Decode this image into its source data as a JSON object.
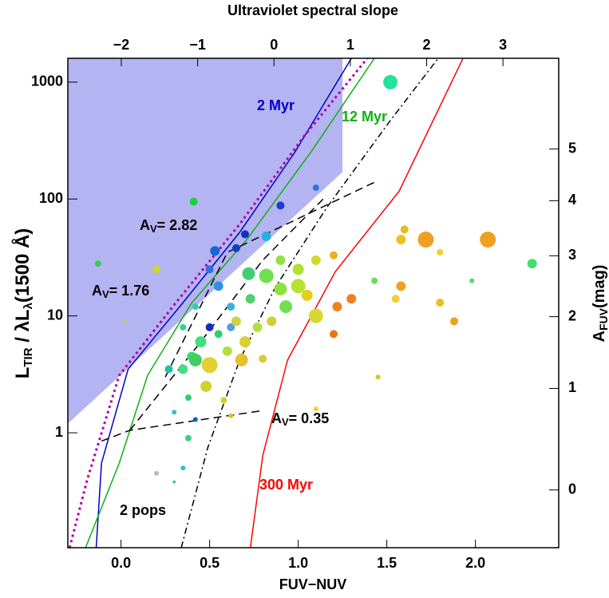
{
  "chart_data": {
    "type": "scatter",
    "xlabel": "FUV−NUV",
    "x2label": "Ultraviolet spectral slope",
    "ylabel": {
      "text": "L",
      "sub": "TIR",
      "tail": " / λL",
      "sub2": "λ",
      "tail2": "(1500 Å)"
    },
    "y2label": {
      "text": "A",
      "sub": "FUV",
      "tail": "(mag)"
    },
    "xlim": [
      -0.3,
      2.47
    ],
    "xticks": [
      {
        "value": 0,
        "label": "0.0"
      },
      0.5,
      {
        "value": 1,
        "label": "1.0"
      },
      1.5,
      {
        "value": 2,
        "label": "2.0"
      }
    ],
    "x2lim": [
      -2.7,
      3.73
    ],
    "x2ticks": [
      {
        "value": -2,
        "label": "−2"
      },
      {
        "value": -1,
        "label": "−1"
      },
      0,
      1,
      2,
      3
    ],
    "ylim": [
      0.104,
      1600
    ],
    "yscale": "log",
    "yticks": [
      1,
      10,
      100,
      1000
    ],
    "y2ticks": [
      0,
      1,
      2,
      3,
      4,
      5
    ],
    "y2_poly_of_log_y": [
      0.4967,
      1.196,
      0.3522,
      -0.0333
    ],
    "shaded_region": {
      "color": "#b4b4f2",
      "x": [
        -0.3,
        1.25,
        1.25,
        -0.3
      ],
      "y": [
        1.2,
        170,
        1600,
        1600
      ]
    },
    "curves": [
      {
        "label": "2 Myr",
        "color": "#0000c8",
        "dash": "solid",
        "x": [
          -0.14,
          -0.11,
          0.04,
          0.35,
          0.67,
          0.98,
          1.3
        ],
        "y": [
          0.104,
          0.55,
          3.5,
          13,
          52,
          250,
          1600
        ]
      },
      {
        "color": "#b000b0",
        "dash": "dotted",
        "x": [
          -0.29,
          -0.19,
          -0.01,
          0.31,
          0.67,
          1.03,
          1.39
        ],
        "y": [
          0.104,
          0.4,
          3.1,
          13,
          61,
          340,
          1600
        ]
      },
      {
        "label": "12 Myr",
        "color": "#10b010",
        "dash": "solid",
        "x": [
          -0.2,
          -0.01,
          0.15,
          0.4,
          0.71,
          1.07,
          1.43
        ],
        "y": [
          0.104,
          0.55,
          3.1,
          13,
          45,
          250,
          1600
        ]
      },
      {
        "label": "300 Myr",
        "color": "#ff0000",
        "dash": "solid",
        "x": [
          0.73,
          0.8,
          0.94,
          1.21,
          1.57,
          1.93
        ],
        "y": [
          0.104,
          0.64,
          4.2,
          24,
          117,
          1600
        ]
      },
      {
        "label": "2 pops",
        "color": "#000000",
        "dash": "dashdot",
        "x": [
          0.34,
          0.49,
          0.67,
          0.87,
          1.16,
          1.52,
          1.79
        ],
        "y": [
          0.104,
          0.75,
          4.2,
          17.5,
          84,
          470,
          1600
        ]
      },
      {
        "label": {
          "text": "A",
          "sub": "V",
          "tail": "= 0.35"
        },
        "color": "#000000",
        "dash": "dashed",
        "x": [
          -0.11,
          0.05,
          0.8
        ],
        "y": [
          0.85,
          1.05,
          1.55
        ]
      },
      {
        "label": {
          "text": "A",
          "sub": "V",
          "tail": "= 1.76"
        },
        "color": "#000000",
        "dash": "dashed",
        "x": [
          0.05,
          0.45,
          0.8,
          1.16
        ],
        "y": [
          1.05,
          6,
          30,
          107
        ]
      },
      {
        "label": {
          "text": "A",
          "sub": "V",
          "tail": "= 2.82"
        },
        "color": "#000000",
        "dash": "dashed",
        "x": [
          0.25,
          0.6,
          1.2,
          1.43
        ],
        "y": [
          3,
          35,
          95,
          139
        ]
      }
    ],
    "x": [
      1.52,
      0.53,
      0.82,
      0.7,
      0.65,
      0.41,
      0.9,
      1.1,
      -0.13,
      0.2,
      0.02,
      0.55,
      0.62,
      0.5,
      0.62,
      0.72,
      0.82,
      0.9,
      1.0,
      1.1,
      1.0,
      0.93,
      1.1,
      1.05,
      1.2,
      1.22,
      1.3,
      1.2,
      1.6,
      1.58,
      1.72,
      2.07,
      1.8,
      2.32,
      1.43,
      1.58,
      1.55,
      1.8,
      1.98,
      1.88,
      1.45,
      0.4,
      0.42,
      0.5,
      0.35,
      0.48,
      0.45,
      0.6,
      0.7,
      0.68,
      0.8,
      0.55,
      0.65,
      0.77,
      0.85,
      0.35,
      0.27,
      0.38,
      0.3,
      0.42,
      0.38,
      0.35,
      0.3,
      0.2,
      0.62,
      0.58,
      1.1,
      0.42,
      0.5,
      0.73,
      0.9
    ],
    "values": [
      1000,
      36,
      48,
      50,
      38,
      95,
      88,
      125,
      28,
      25,
      9,
      18,
      12,
      8,
      8,
      23,
      22,
      30,
      25,
      30,
      18,
      12,
      10,
      15,
      33,
      12,
      14,
      7,
      55,
      45,
      45,
      45,
      35,
      28,
      20,
      18,
      14,
      13,
      20,
      9,
      3,
      4.5,
      4.2,
      3.8,
      3.5,
      2.5,
      6,
      5,
      6,
      4.2,
      4.3,
      7,
      9,
      8,
      9,
      8,
      3.5,
      2,
      1.5,
      1.3,
      0.9,
      0.5,
      0.38,
      0.45,
      1.4,
      1.9,
      1.6,
      12,
      25,
      14,
      17
    ],
    "sizes": [
      9,
      6,
      6,
      5,
      5,
      5,
      5,
      4,
      4,
      5,
      2,
      6,
      5,
      5,
      5,
      8,
      9,
      6,
      7,
      6,
      9,
      8,
      9,
      7,
      5,
      6,
      6,
      5,
      5,
      6,
      10,
      10,
      4,
      6,
      4,
      6,
      5,
      5,
      3,
      5,
      3,
      6,
      8,
      10,
      6,
      7,
      7,
      6,
      7,
      8,
      5,
      5,
      6,
      6,
      6,
      4,
      5,
      4,
      3,
      3,
      4,
      3,
      2,
      3,
      3,
      4,
      3,
      4,
      5,
      6,
      8
    ],
    "colors": [
      "#22e39a",
      "#1565d8",
      "#28b0e0",
      "#1030c0",
      "#1040c0",
      "#18d040",
      "#1a3cd0",
      "#3070e0",
      "#30d050",
      "#c8d838",
      "#d0d040",
      "#3090e0",
      "#40b0e0",
      "#1828c0",
      "#50a0e0",
      "#40d070",
      "#70e050",
      "#90e040",
      "#b0e030",
      "#d0d830",
      "#b8e030",
      "#70e050",
      "#d8d830",
      "#e0d020",
      "#f0b020",
      "#f08020",
      "#f08020",
      "#f07018",
      "#e0c020",
      "#f0c020",
      "#f0a020",
      "#f0a020",
      "#f0d030",
      "#40e070",
      "#60e060",
      "#f0a020",
      "#f0d030",
      "#e8c020",
      "#50e060",
      "#f0a020",
      "#e0c020",
      "#30e070",
      "#40d060",
      "#e0d030",
      "#40e080",
      "#d0d030",
      "#40e080",
      "#b0e040",
      "#d8d030",
      "#e8c030",
      "#d0d030",
      "#30d070",
      "#d0d040",
      "#b0e040",
      "#d0d030",
      "#30d0a0",
      "#20c0a0",
      "#30d070",
      "#30c0c0",
      "#1060c0",
      "#40d080",
      "#30c0c0",
      "#40d080",
      "#c0b0d0",
      "#e0c020",
      "#d0d030",
      "#f0d030",
      "#30d0a0",
      "#3070e0",
      "#50d070",
      "#90e040"
    ]
  }
}
